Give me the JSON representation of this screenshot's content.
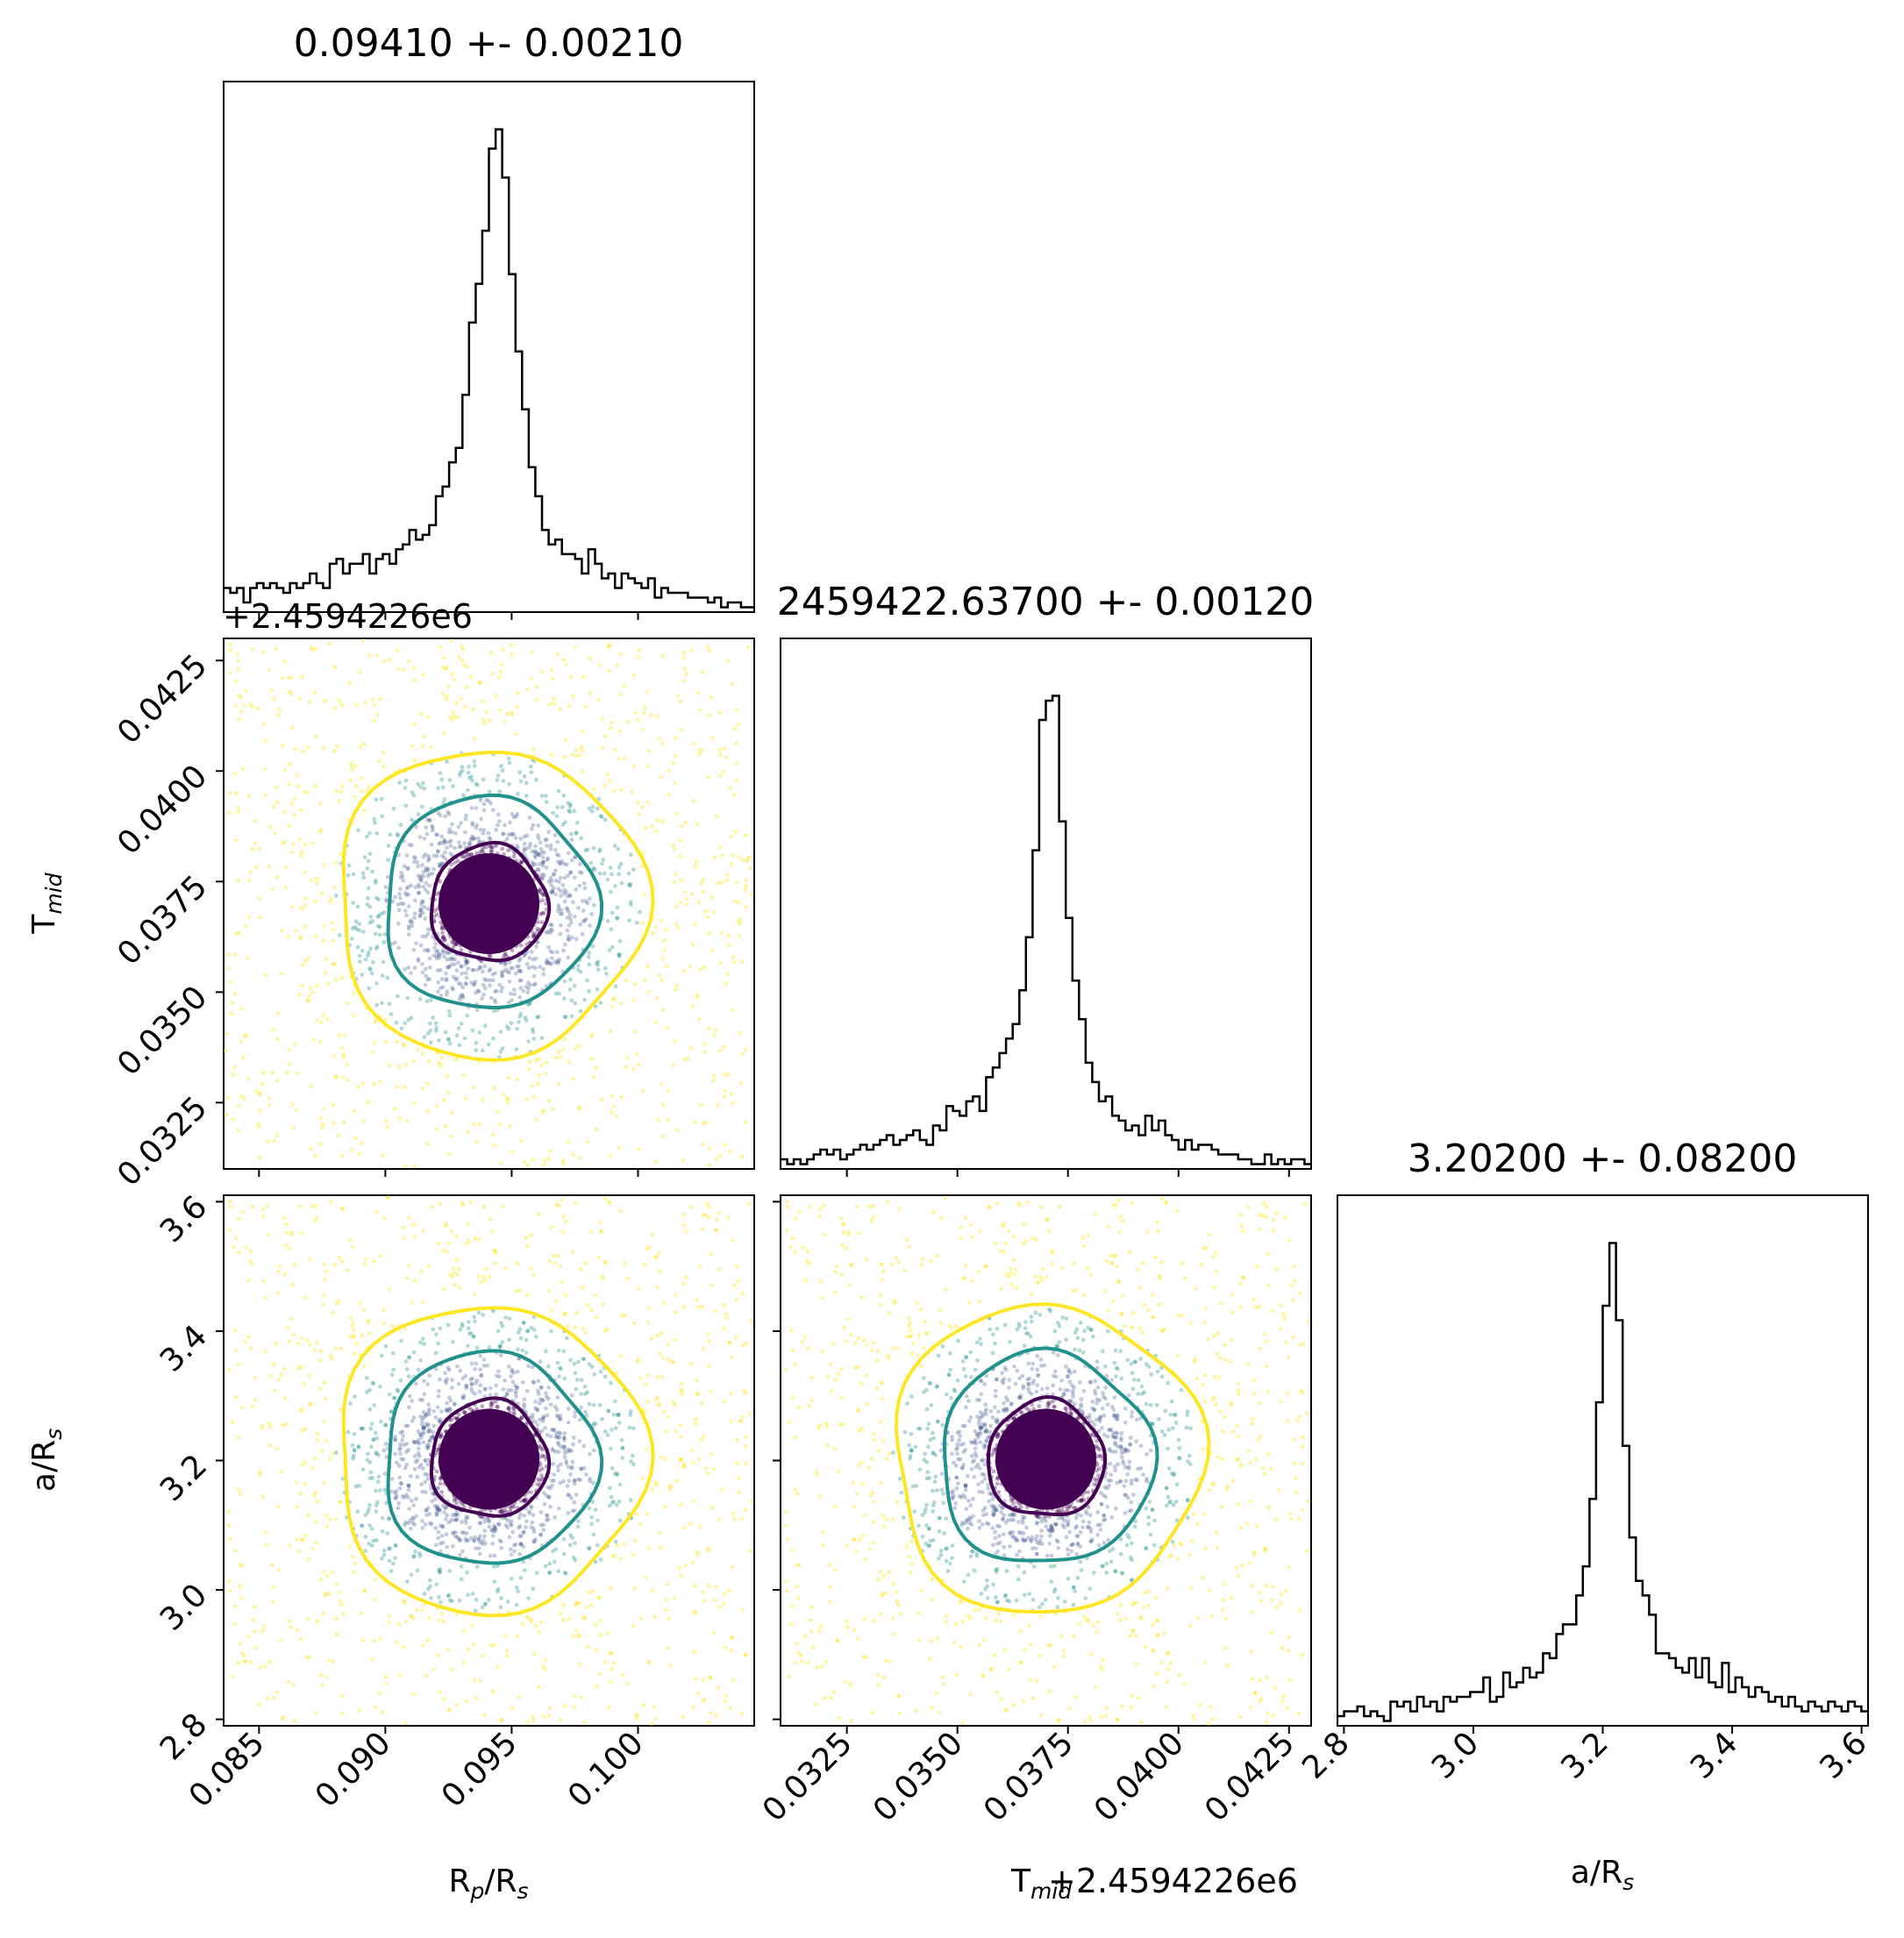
{
  "colors": {
    "hist_line": "#000000",
    "frame": "#000000",
    "contour_inner": "#440154",
    "contour_mid": "#21918c",
    "contour_outer": "#fde725",
    "points_palette": [
      "#440154",
      "#3b528b",
      "#21918c",
      "#5ec962",
      "#fde725"
    ]
  },
  "titles": {
    "rp": "0.09410 +- 0.00210",
    "tmid": "2459422.63700 +- 0.00120",
    "ars": "3.20200 +- 0.08200"
  },
  "axis_labels": {
    "rp_x": "R",
    "rp_x_sub": "p",
    "rp_x_tail": "/R",
    "rp_x_sub2": "s",
    "tmid_x": "T",
    "tmid_x_sub": "mid",
    "tmid_y": "T",
    "tmid_y_sub": "mid",
    "ars_x": "a/R",
    "ars_x_sub": "s",
    "ars_y": "a/R",
    "ars_y_sub": "s",
    "offset_top": "+2.4594226e6",
    "offset_bottom": "+2.4594226e6"
  },
  "chart_data": {
    "type": "corner",
    "parameters": [
      {
        "name": "Rp/Rs",
        "median": 0.0941,
        "sigma": 0.0021,
        "range": [
          0.0836,
          0.1046
        ],
        "ticks": [
          0.085,
          0.09,
          0.095,
          0.1
        ],
        "tick_labels": [
          "0.085",
          "0.090",
          "0.095",
          "0.100"
        ]
      },
      {
        "name": "Tmid",
        "offset": 2459422.6,
        "median": 0.037,
        "sigma": 0.0012,
        "range": [
          0.031,
          0.043
        ],
        "ticks": [
          0.0325,
          0.035,
          0.0375,
          0.04,
          0.0425
        ],
        "tick_labels": [
          "0.0325",
          "0.0350",
          "0.0375",
          "0.0400",
          "0.0425"
        ]
      },
      {
        "name": "a/Rs",
        "median": 3.202,
        "sigma": 0.082,
        "range": [
          2.79,
          3.61
        ],
        "ticks": [
          2.8,
          3.0,
          3.2,
          3.4,
          3.6
        ],
        "tick_labels": [
          "2.8",
          "3.0",
          "3.2",
          "3.4",
          "3.6"
        ]
      }
    ],
    "histograms": {
      "rp": [
        0.05,
        0.04,
        0.05,
        0.02,
        0.05,
        0.06,
        0.05,
        0.06,
        0.05,
        0.04,
        0.06,
        0.05,
        0.06,
        0.08,
        0.06,
        0.05,
        0.1,
        0.11,
        0.08,
        0.1,
        0.1,
        0.12,
        0.08,
        0.11,
        0.12,
        0.1,
        0.13,
        0.14,
        0.17,
        0.15,
        0.16,
        0.18,
        0.24,
        0.26,
        0.31,
        0.34,
        0.45,
        0.6,
        0.68,
        0.79,
        0.96,
        1.0,
        0.9,
        0.7,
        0.54,
        0.42,
        0.3,
        0.24,
        0.17,
        0.14,
        0.15,
        0.12,
        0.12,
        0.11,
        0.08,
        0.13,
        0.1,
        0.07,
        0.08,
        0.05,
        0.08,
        0.07,
        0.06,
        0.05,
        0.07,
        0.03,
        0.05,
        0.04,
        0.04,
        0.04,
        0.03,
        0.03,
        0.03,
        0.02,
        0.03,
        0.01,
        0.02,
        0.02,
        0.01,
        0.01
      ],
      "tmid": [
        0.02,
        0.01,
        0.02,
        0.01,
        0.02,
        0.03,
        0.04,
        0.03,
        0.04,
        0.02,
        0.03,
        0.04,
        0.05,
        0.04,
        0.05,
        0.06,
        0.07,
        0.05,
        0.06,
        0.07,
        0.08,
        0.06,
        0.05,
        0.09,
        0.08,
        0.13,
        0.12,
        0.11,
        0.14,
        0.15,
        0.12,
        0.19,
        0.21,
        0.24,
        0.27,
        0.3,
        0.37,
        0.48,
        0.66,
        0.93,
        0.97,
        0.98,
        0.72,
        0.52,
        0.39,
        0.31,
        0.22,
        0.18,
        0.14,
        0.15,
        0.11,
        0.1,
        0.08,
        0.09,
        0.07,
        0.11,
        0.08,
        0.1,
        0.07,
        0.06,
        0.04,
        0.06,
        0.04,
        0.05,
        0.05,
        0.04,
        0.03,
        0.03,
        0.03,
        0.02,
        0.02,
        0.01,
        0.01,
        0.03,
        0.01,
        0.02,
        0.01,
        0.02,
        0.02,
        0.01
      ],
      "ars": [
        0.02,
        0.03,
        0.03,
        0.04,
        0.02,
        0.03,
        0.02,
        0.01,
        0.05,
        0.04,
        0.05,
        0.03,
        0.06,
        0.04,
        0.05,
        0.03,
        0.06,
        0.05,
        0.06,
        0.06,
        0.07,
        0.07,
        0.1,
        0.05,
        0.06,
        0.11,
        0.08,
        0.09,
        0.12,
        0.1,
        0.11,
        0.15,
        0.14,
        0.19,
        0.21,
        0.21,
        0.27,
        0.33,
        0.47,
        0.67,
        0.87,
        1.0,
        0.84,
        0.58,
        0.39,
        0.3,
        0.27,
        0.23,
        0.15,
        0.15,
        0.14,
        0.12,
        0.11,
        0.14,
        0.1,
        0.14,
        0.09,
        0.08,
        0.13,
        0.07,
        0.1,
        0.08,
        0.06,
        0.08,
        0.07,
        0.05,
        0.06,
        0.04,
        0.06,
        0.04,
        0.03,
        0.05,
        0.04,
        0.03,
        0.05,
        0.04,
        0.03,
        0.05,
        0.04,
        0.03
      ]
    }
  }
}
